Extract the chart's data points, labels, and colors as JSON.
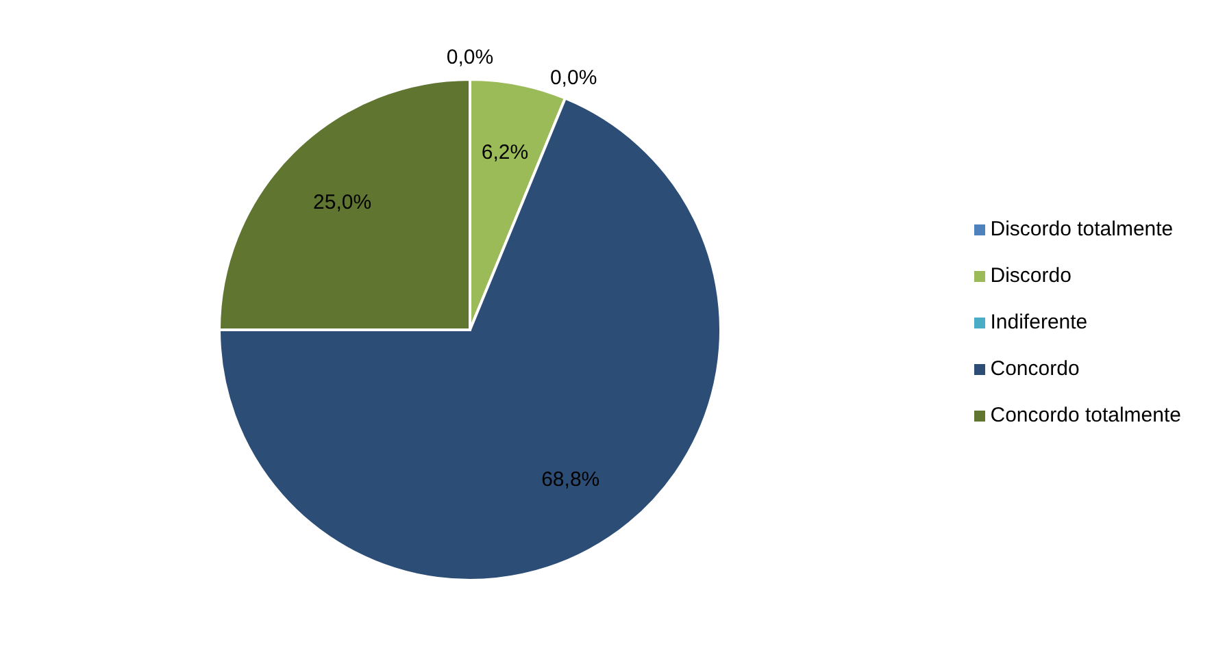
{
  "chart_data": {
    "type": "pie",
    "categories": [
      "Discordo totalmente",
      "Discordo",
      "Indiferente",
      "Concordo",
      "Concordo totalmente"
    ],
    "values": [
      0,
      6.2,
      0,
      68.8,
      25
    ],
    "colors": [
      "#4f81bd",
      "#9bbb59",
      "#4bacc6",
      "#2c4d75",
      "#5f7530"
    ],
    "value_labels": [
      "0,0%",
      "6,2%",
      "0,0%",
      "68,8%",
      "25,0%"
    ],
    "legend": "right"
  }
}
